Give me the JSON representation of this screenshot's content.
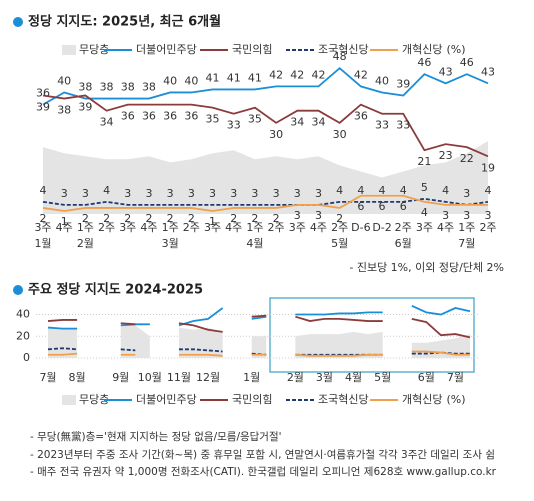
{
  "chart_data": [
    {
      "type": "line",
      "title": "정당 지지도: 2025년, 최근 6개월",
      "legend": "top",
      "show_values": true,
      "unit": "(%)",
      "categories": [
        "3주",
        "4주",
        "1주",
        "2주",
        "3주",
        "4주",
        "1주",
        "2주",
        "3주",
        "4주",
        "1주",
        "2주",
        "3주",
        "4주",
        "2주",
        "D-6",
        "D-2",
        "2주",
        "3주",
        "4주",
        "1주",
        "2주"
      ],
      "groups": [
        "1월",
        null,
        "2월",
        null,
        null,
        null,
        "3월",
        null,
        null,
        null,
        "4월",
        null,
        null,
        null,
        "5월",
        null,
        null,
        "6월",
        null,
        null,
        "7월",
        null
      ],
      "ylim": [
        0,
        52
      ],
      "series": [
        {
          "name": "무당층",
          "style": "area",
          "color": "#e4e4e4",
          "values": [
            22,
            20,
            19,
            18,
            18,
            19,
            17,
            18,
            20,
            21,
            18,
            19,
            18,
            19,
            16,
            14,
            12,
            14,
            16,
            17,
            20,
            24
          ]
        },
        {
          "name": "더불어민주당",
          "style": "solid",
          "color": "#1a8fd8",
          "values": [
            36,
            40,
            38,
            38,
            38,
            38,
            40,
            40,
            41,
            41,
            41,
            42,
            42,
            42,
            48,
            42,
            40,
            39,
            46,
            43,
            46,
            43
          ]
        },
        {
          "name": "국민의힘",
          "style": "solid",
          "color": "#8c3b3b",
          "values": [
            39,
            38,
            39,
            34,
            36,
            36,
            36,
            36,
            35,
            33,
            35,
            30,
            34,
            34,
            30,
            36,
            33,
            33,
            21,
            23,
            22,
            19
          ]
        },
        {
          "name": "조국혁신당",
          "style": "dashed",
          "color": "#1f3a73",
          "values": [
            4,
            3,
            3,
            4,
            3,
            3,
            3,
            3,
            3,
            3,
            3,
            3,
            3,
            3,
            4,
            4,
            4,
            4,
            5,
            4,
            3,
            4
          ]
        },
        {
          "name": "개혁신당",
          "style": "solid",
          "color": "#f0a04b",
          "values": [
            2,
            1,
            2,
            2,
            2,
            2,
            2,
            2,
            1,
            2,
            2,
            2,
            3,
            3,
            2,
            6,
            6,
            6,
            4,
            3,
            3,
            3
          ]
        }
      ],
      "note": "- 진보당 1%, 이외 정당/단체 2%"
    },
    {
      "type": "line",
      "title": "주요 정당 지지도 2024-2025",
      "legend": "bottom",
      "show_values": false,
      "unit": "(%)",
      "categories": [
        "7월",
        null,
        "8월",
        null,
        null,
        "9월",
        null,
        "10월",
        null,
        "11월",
        null,
        "12월",
        null,
        null,
        "1월",
        null,
        null,
        "2월",
        null,
        "3월",
        null,
        "4월",
        null,
        "5월",
        null,
        null,
        "6월",
        null,
        "7월",
        null
      ],
      "ylim": [
        0,
        46
      ],
      "yticks": [
        0,
        20,
        40
      ],
      "grid": true,
      "series": [
        {
          "name": "무당층",
          "style": "area",
          "color": "#e4e4e4",
          "values": [
            27,
            28,
            28,
            null,
            null,
            29,
            30,
            20,
            null,
            28,
            26,
            28,
            24,
            null,
            20,
            20,
            null,
            20,
            22,
            22,
            22,
            24,
            22,
            24,
            null,
            14,
            14,
            16,
            18,
            22
          ]
        },
        {
          "name": "더불어민주당",
          "style": "solid",
          "color": "#1a8fd8",
          "values": [
            28,
            27,
            27,
            null,
            null,
            30,
            31,
            31,
            null,
            30,
            34,
            36,
            46,
            null,
            36,
            38,
            null,
            40,
            40,
            40,
            41,
            41,
            42,
            42,
            null,
            48,
            42,
            40,
            46,
            43
          ]
        },
        {
          "name": "국민의힘",
          "style": "solid",
          "color": "#8c3b3b",
          "values": [
            34,
            35,
            35,
            null,
            null,
            32,
            31,
            null,
            null,
            32,
            30,
            26,
            24,
            null,
            38,
            39,
            null,
            38,
            34,
            36,
            36,
            35,
            34,
            34,
            null,
            36,
            33,
            21,
            22,
            19
          ]
        },
        {
          "name": "조국혁신당",
          "style": "dashed",
          "color": "#1f3a73",
          "values": [
            8,
            9,
            8,
            null,
            null,
            8,
            7,
            null,
            null,
            8,
            8,
            7,
            6,
            null,
            4,
            3,
            null,
            3,
            3,
            3,
            3,
            3,
            3,
            3,
            null,
            4,
            4,
            5,
            4,
            4
          ]
        },
        {
          "name": "개혁신당",
          "style": "solid",
          "color": "#f0a04b",
          "values": [
            3,
            3,
            4,
            null,
            null,
            3,
            3,
            null,
            null,
            3,
            3,
            3,
            2,
            null,
            3,
            3,
            null,
            3,
            2,
            2,
            2,
            2,
            3,
            3,
            null,
            6,
            6,
            5,
            3,
            3
          ]
        }
      ]
    }
  ],
  "footnotes": [
    "- 무당(無黨)층='현재 지지하는 정당 없음/모름/응답거절'",
    "- 2023년부터 주중 조사 기간(화~목) 중 휴무일 포함 시, 연말연시·여름휴가철 각각 3주간 데일리 조사 쉼",
    "- 매주 전국 유권자 약 1,000명 전화조사(CATI). 한국갤럽 데일리 오피니언 제628호 www.gallup.co.kr"
  ]
}
